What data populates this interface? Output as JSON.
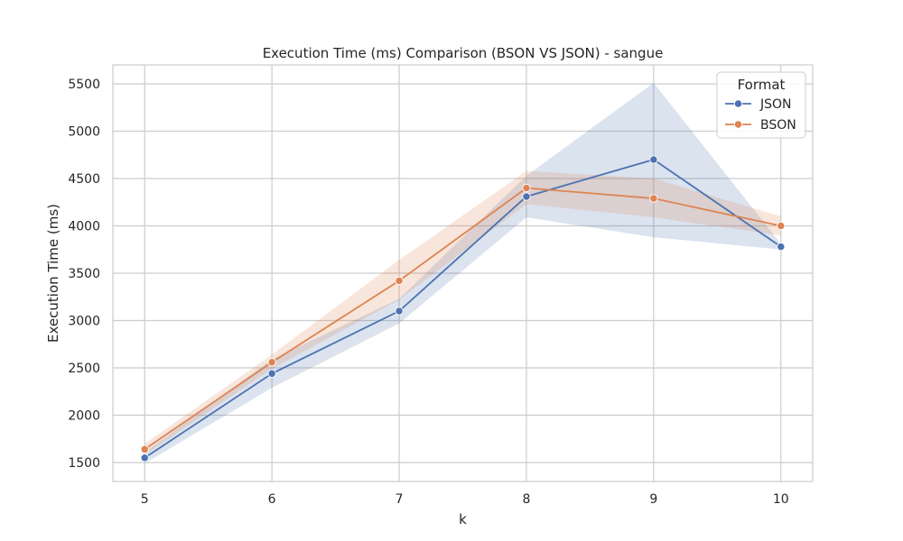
{
  "chart_data": {
    "type": "line",
    "title": "Execution Time (ms) Comparison (BSON VS JSON) - sangue",
    "xlabel": "k",
    "ylabel": "Execution Time (ms)",
    "x": [
      5,
      6,
      7,
      8,
      9,
      10
    ],
    "x_ticks": [
      "5",
      "6",
      "7",
      "8",
      "9",
      "10"
    ],
    "xlim": [
      4.75,
      10.25
    ],
    "ylim": [
      1300,
      5700
    ],
    "y_ticks": [
      "1500",
      "2000",
      "2500",
      "3000",
      "3500",
      "4000",
      "4500",
      "5000",
      "5500"
    ],
    "grid": true,
    "legend": {
      "title": "Format",
      "placement": "top-right"
    },
    "series": [
      {
        "name": "JSON",
        "color": "#4c72b0",
        "values": [
          1550,
          2440,
          3100,
          4310,
          4700,
          3780
        ],
        "ci_low": [
          1490,
          2290,
          2970,
          4090,
          3880,
          3750
        ],
        "ci_high": [
          1610,
          2590,
          3230,
          4530,
          5510,
          3810
        ]
      },
      {
        "name": "BSON",
        "color": "#dd8452",
        "values": [
          1640,
          2560,
          3420,
          4400,
          4290,
          4000
        ],
        "ci_low": [
          1580,
          2490,
          3220,
          4230,
          4090,
          3900
        ],
        "ci_high": [
          1700,
          2640,
          3640,
          4580,
          4500,
          4100
        ]
      }
    ]
  }
}
